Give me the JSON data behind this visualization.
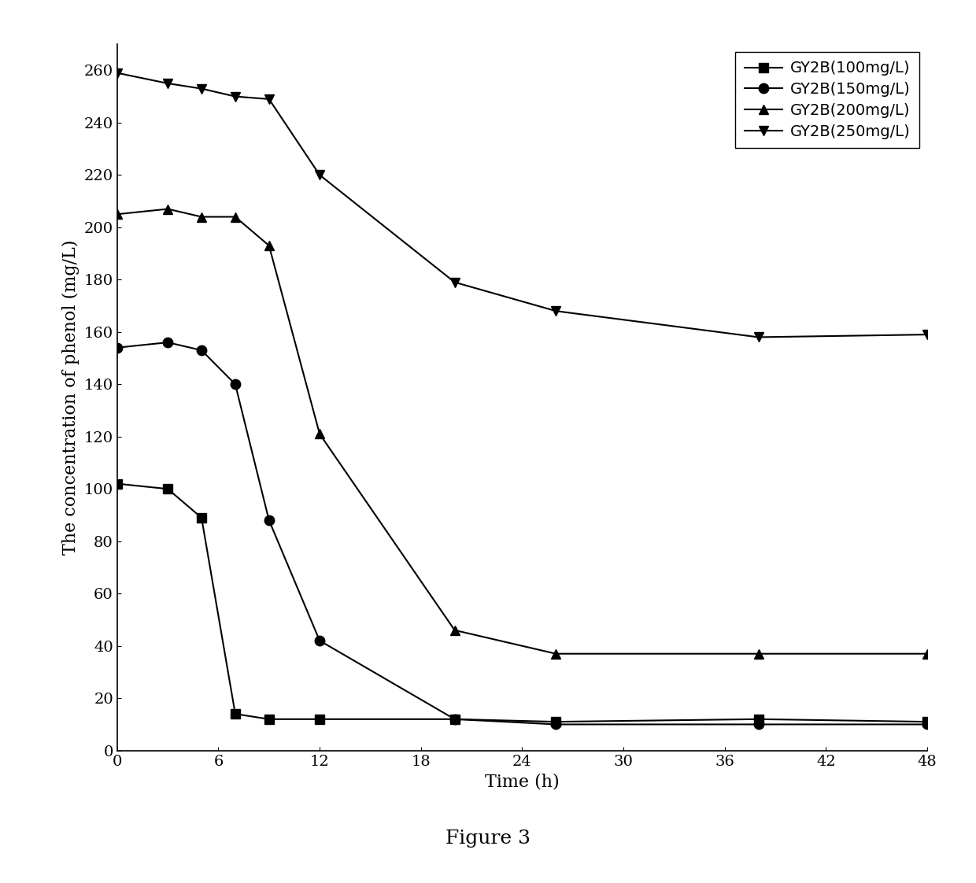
{
  "series": [
    {
      "label": "GY2B(100mg/L)",
      "marker": "s",
      "color": "#000000",
      "x": [
        0,
        3,
        5,
        7,
        9,
        12,
        20,
        26,
        38,
        48
      ],
      "y": [
        102,
        100,
        89,
        14,
        12,
        12,
        12,
        11,
        12,
        11
      ]
    },
    {
      "label": "GY2B(150mg/L)",
      "marker": "o",
      "color": "#000000",
      "x": [
        0,
        3,
        5,
        7,
        9,
        12,
        20,
        26,
        38,
        48
      ],
      "y": [
        154,
        156,
        153,
        140,
        88,
        42,
        12,
        10,
        10,
        10
      ]
    },
    {
      "label": "GY2B(200mg/L)",
      "marker": "^",
      "color": "#000000",
      "x": [
        0,
        3,
        5,
        7,
        9,
        12,
        20,
        26,
        38,
        48
      ],
      "y": [
        205,
        207,
        204,
        204,
        193,
        121,
        46,
        37,
        37,
        37
      ]
    },
    {
      "label": "GY2B(250mg/L)",
      "marker": "v",
      "color": "#000000",
      "x": [
        0,
        3,
        5,
        7,
        9,
        12,
        20,
        26,
        38,
        48
      ],
      "y": [
        259,
        255,
        253,
        250,
        249,
        220,
        179,
        168,
        158,
        159
      ]
    }
  ],
  "xlabel": "Time (h)",
  "ylabel": "The concentration of phenol (mg/L)",
  "xlim": [
    0,
    48
  ],
  "ylim": [
    0,
    270
  ],
  "xticks": [
    0,
    6,
    12,
    18,
    24,
    30,
    36,
    42,
    48
  ],
  "yticks": [
    0,
    20,
    40,
    60,
    80,
    100,
    120,
    140,
    160,
    180,
    200,
    220,
    240,
    260
  ],
  "figure_label": "Figure 3",
  "background_color": "#ffffff",
  "linewidth": 1.5,
  "markersize": 9
}
